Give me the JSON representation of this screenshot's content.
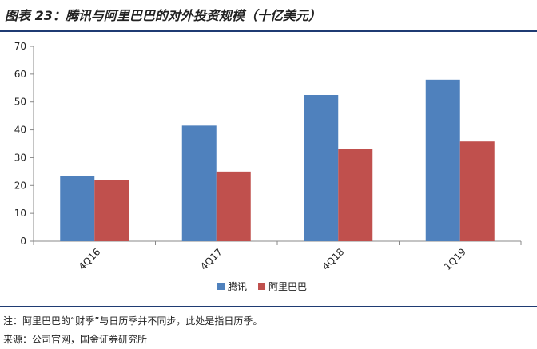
{
  "header": {
    "title": "图表 23：腾讯与阿里巴巴的对外投资规模（十亿美元）"
  },
  "footer": {
    "note": "注：阿里巴巴的“财季”与日历季并不同步，此处是指日历季。",
    "source": "来源：公司官网，国金证券研究所"
  },
  "chart_data": {
    "type": "bar",
    "categories": [
      "4Q16",
      "4Q17",
      "4Q18",
      "1Q19"
    ],
    "series": [
      {
        "name": "腾讯",
        "values": [
          23.5,
          41.5,
          52.5,
          58
        ],
        "color": "#4f81bd"
      },
      {
        "name": "阿里巴巴",
        "values": [
          22,
          25,
          33,
          35.8
        ],
        "color": "#c0504d"
      }
    ],
    "yticks": [
      0,
      10,
      20,
      30,
      40,
      50,
      60,
      70
    ],
    "ylim": [
      0,
      70
    ],
    "grid": false,
    "legend_position": "bottom-center",
    "x_label_rotation": "-45deg"
  }
}
